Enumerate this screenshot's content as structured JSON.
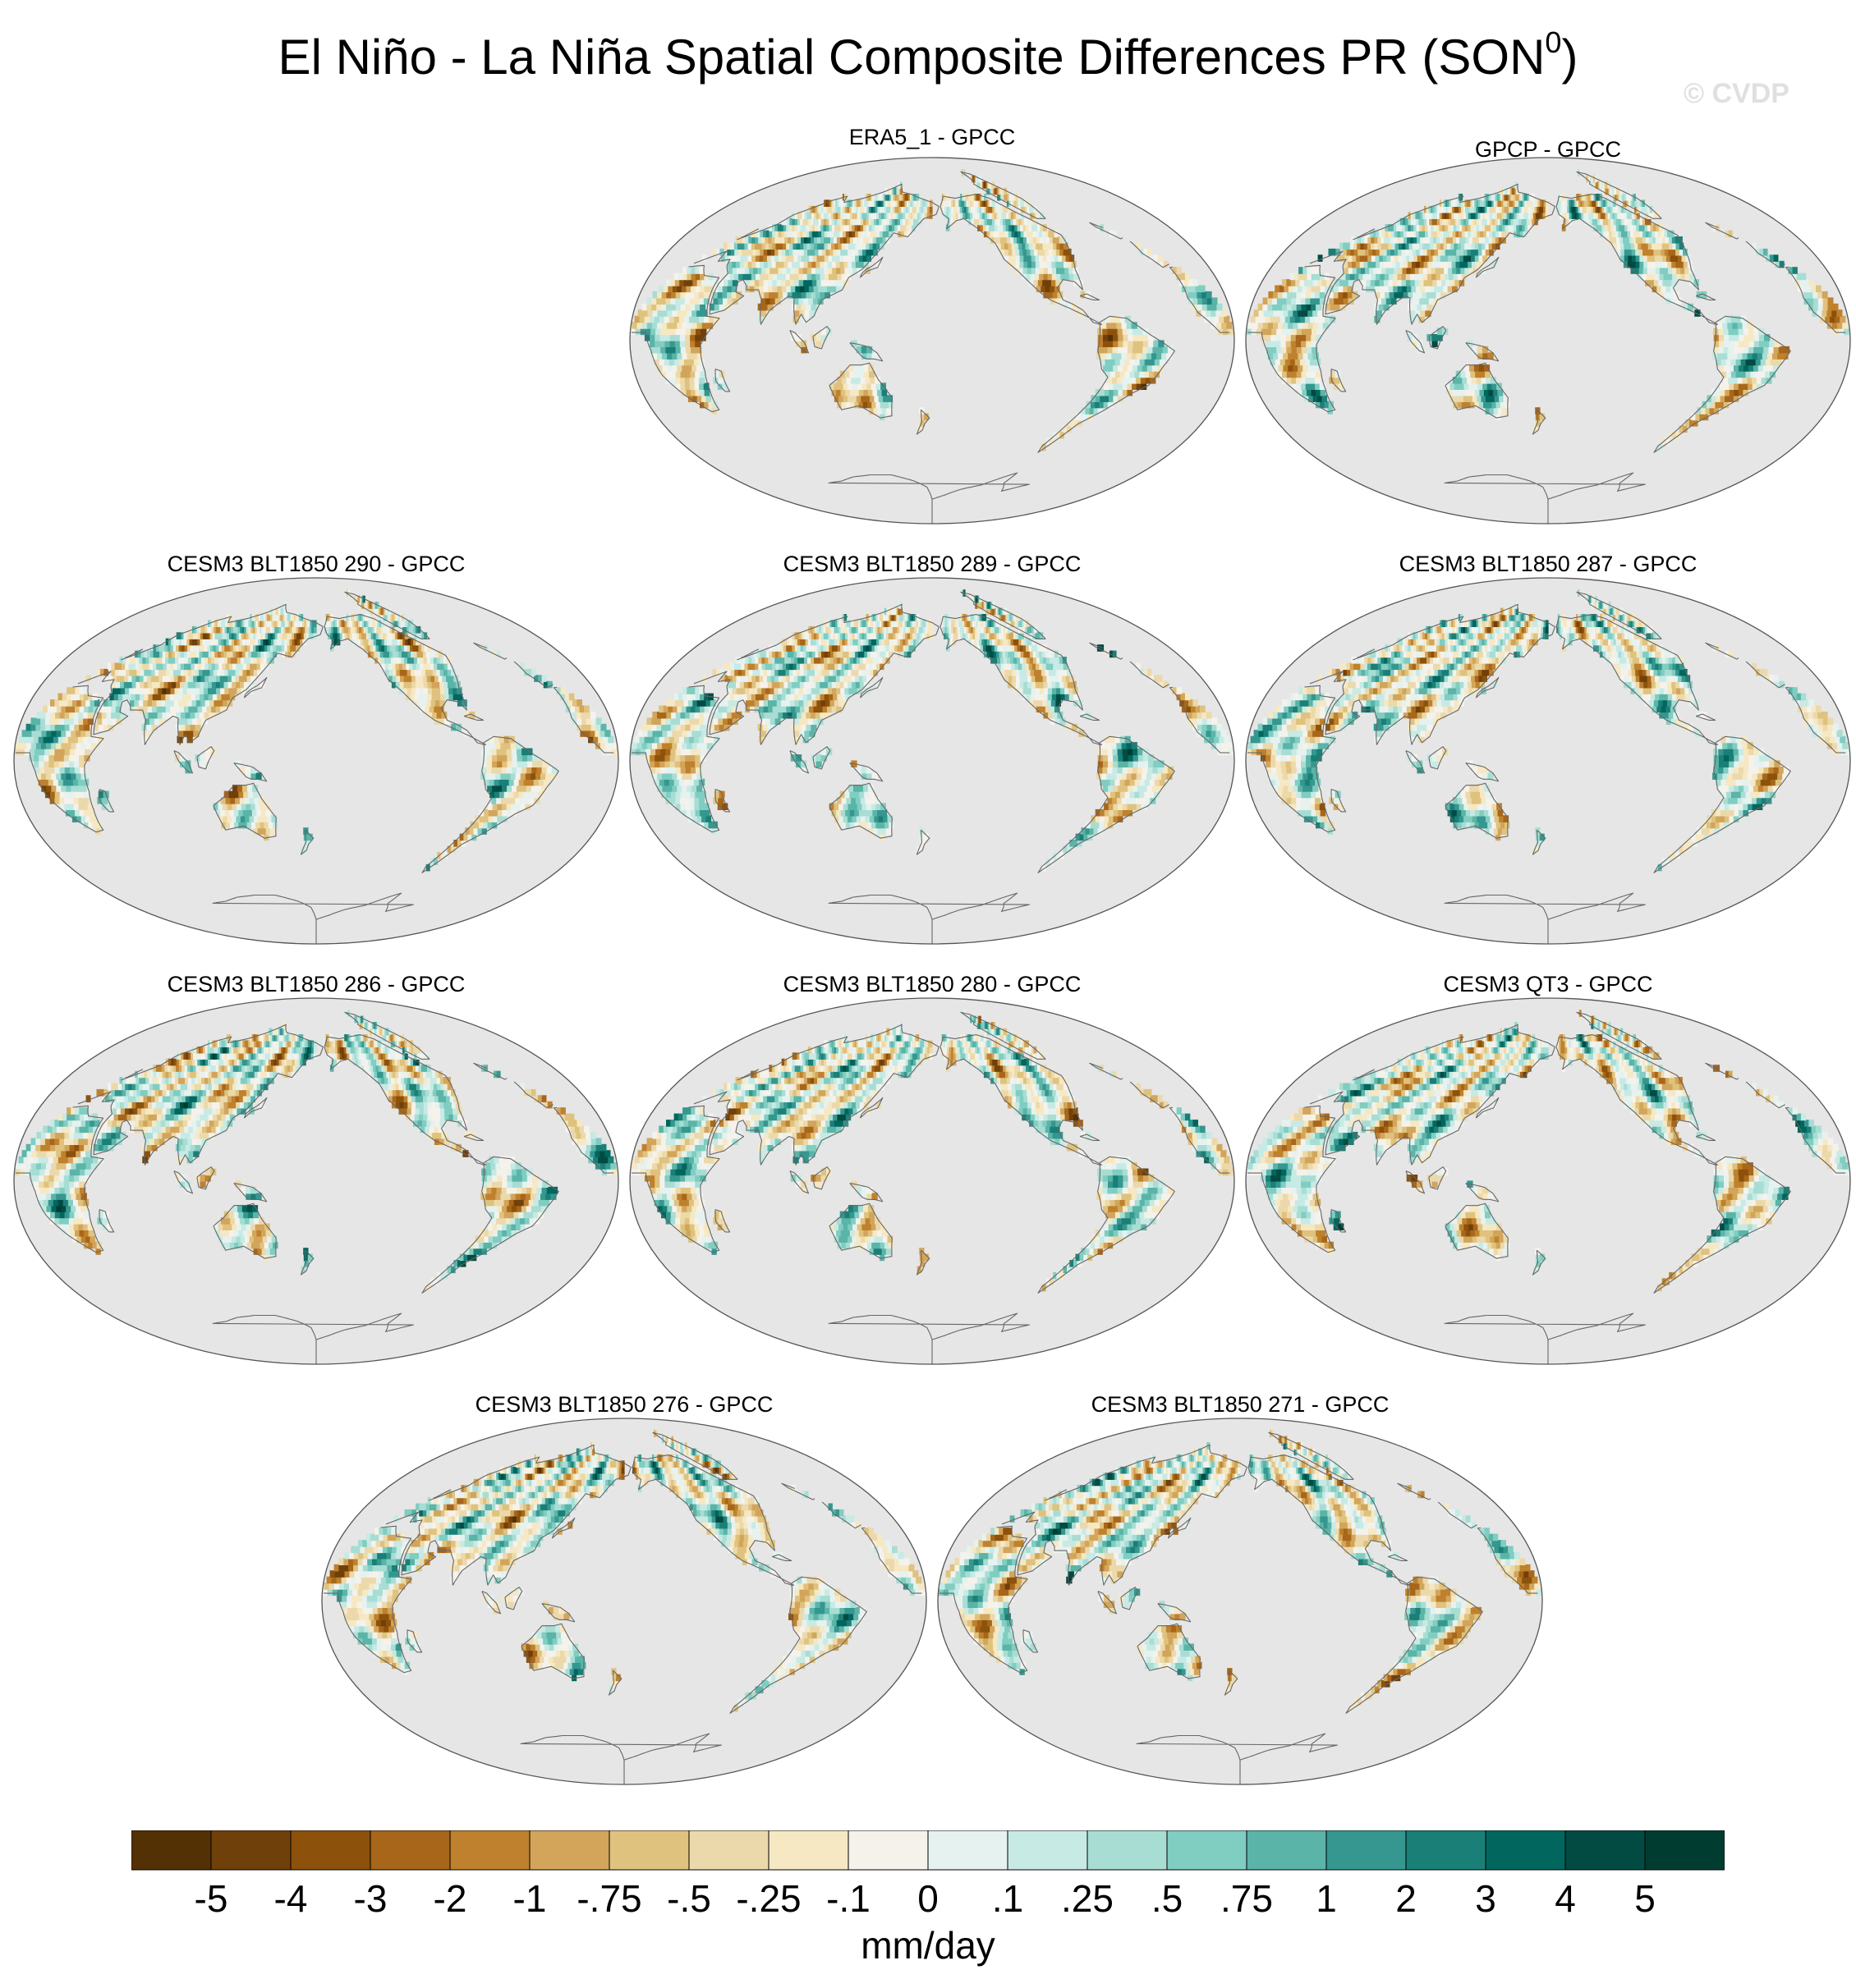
{
  "title": {
    "main": "El Niño - La Niña Spatial Composite Differences PR (SON",
    "superscript": "0",
    "close": ")"
  },
  "watermark": "© CVDP",
  "panels": [
    {
      "label": "ERA5_1 - GPCC",
      "variant": 0
    },
    {
      "label": "GPCP - GPCC",
      "variant": 1
    },
    {
      "label": "CESM3 BLT1850 290 - GPCC",
      "variant": 2
    },
    {
      "label": "CESM3 BLT1850 289 - GPCC",
      "variant": 3
    },
    {
      "label": "CESM3 BLT1850 287 - GPCC",
      "variant": 4
    },
    {
      "label": "CESM3 BLT1850 286 - GPCC",
      "variant": 5
    },
    {
      "label": "CESM3 BLT1850 280 - GPCC",
      "variant": 6
    },
    {
      "label": "CESM3 QT3 - GPCC",
      "variant": 7
    },
    {
      "label": "CESM3 BLT1850 276 - GPCC",
      "variant": 8
    },
    {
      "label": "CESM3 BLT1850 271 - GPCC",
      "variant": 9
    }
  ],
  "colorbar": {
    "colors": [
      "#543005",
      "#70400b",
      "#8c510a",
      "#a8661a",
      "#bf812d",
      "#d2a55b",
      "#dfc27d",
      "#ecd9ab",
      "#f6e8c3",
      "#f5f2ec",
      "#e6f2ef",
      "#c7eae5",
      "#a8ddd4",
      "#80cdc1",
      "#5ab4a7",
      "#35978f",
      "#1a7f76",
      "#01665e",
      "#014b43",
      "#003c30"
    ],
    "ticks": [
      "-5",
      "-4",
      "-3",
      "-2",
      "-1",
      "-.75",
      "-.5",
      "-.25",
      "-.1",
      "0",
      ".1",
      ".25",
      ".5",
      ".75",
      "1",
      "2",
      "3",
      "4",
      "5"
    ],
    "units": "mm/day"
  },
  "colors": {
    "ocean": "#e6e6e6",
    "land": "#f5f2ec",
    "coast": "#666666"
  }
}
